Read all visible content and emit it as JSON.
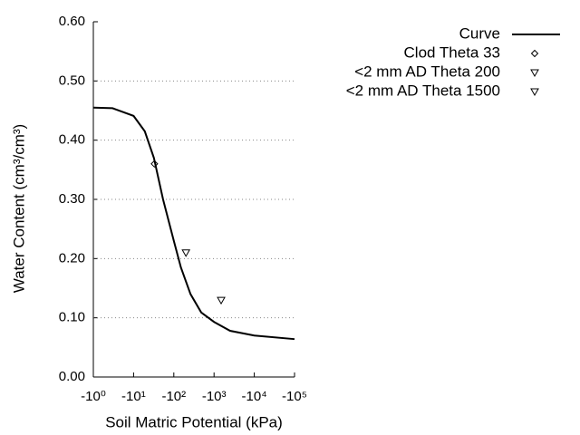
{
  "chart_data": {
    "type": "line",
    "x_label": "Soil Matric Potential (kPa)",
    "y_label": "Water Content (cm³/cm³)",
    "x_scale": "log",
    "xlim": [
      -1,
      -100000
    ],
    "xticks": [
      {
        "value": -1,
        "label": "-10⁰"
      },
      {
        "value": -10,
        "label": "-10¹"
      },
      {
        "value": -100,
        "label": "-10²"
      },
      {
        "value": -1000,
        "label": "-10³"
      },
      {
        "value": -10000,
        "label": "-10⁴"
      },
      {
        "value": -100000,
        "label": "-10⁵"
      }
    ],
    "ylim": [
      0,
      0.6
    ],
    "yticks": [
      {
        "value": 0,
        "label": "0.00"
      },
      {
        "value": 0.1,
        "label": "0.10"
      },
      {
        "value": 0.2,
        "label": "0.20"
      },
      {
        "value": 0.3,
        "label": "0.30"
      },
      {
        "value": 0.4,
        "label": "0.40"
      },
      {
        "value": 0.5,
        "label": "0.50"
      },
      {
        "value": 0.6,
        "label": "0.60"
      }
    ],
    "grid": true,
    "legend": "top-right",
    "series": [
      {
        "name": "Curve",
        "type": "line",
        "color": "#000000",
        "x": [
          -1,
          -3,
          -10,
          -19,
          -32,
          -54,
          -100,
          -150,
          -260,
          -480,
          -1000,
          -2500,
          -10000,
          -100000
        ],
        "values": [
          0.455,
          0.454,
          0.441,
          0.415,
          0.37,
          0.3,
          0.23,
          0.185,
          0.14,
          0.109,
          0.093,
          0.078,
          0.07,
          0.064
        ]
      },
      {
        "name": "Clod Theta 33",
        "type": "scatter",
        "marker": "diamond",
        "color": "#000000",
        "x": [
          -33
        ],
        "values": [
          0.36
        ]
      },
      {
        "name": "<2 mm AD Theta 200",
        "type": "scatter",
        "marker": "triangle-down",
        "color": "#000000",
        "x": [
          -200
        ],
        "values": [
          0.21
        ]
      },
      {
        "name": "<2 mm AD Theta 1500",
        "type": "scatter",
        "marker": "triangle-down",
        "color": "#000000",
        "x": [
          -1500
        ],
        "values": [
          0.13
        ]
      }
    ]
  }
}
